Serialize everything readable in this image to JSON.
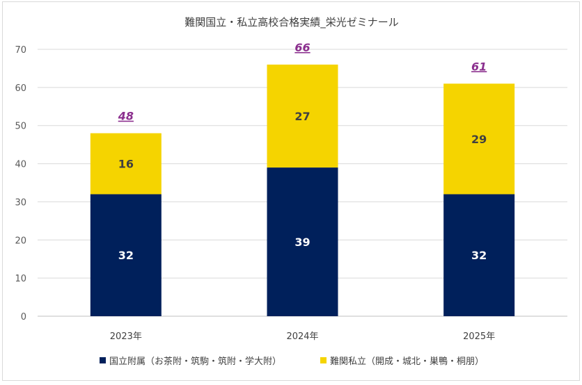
{
  "chart_data": {
    "type": "bar",
    "stacked": true,
    "title": "難関国立・私立高校合格実績_栄光ゼミナール",
    "categories": [
      "2023年",
      "2024年",
      "2025年"
    ],
    "series": [
      {
        "name": "国立附属（お茶附・筑駒・筑附・学大附）",
        "color": "#00205b",
        "values": [
          32,
          39,
          32
        ]
      },
      {
        "name": "難関私立（開成・城北・巣鴨・桐朋）",
        "color": "#f5d400",
        "values": [
          16,
          27,
          29
        ]
      }
    ],
    "totals": [
      48,
      66,
      61
    ],
    "total_label_color": "#8b2f8e",
    "ylim": [
      0,
      70
    ],
    "yticks": [
      0,
      10,
      20,
      30,
      40,
      50,
      60,
      70
    ],
    "grid": true,
    "legend": "bottom",
    "xlabel": "",
    "ylabel": ""
  }
}
